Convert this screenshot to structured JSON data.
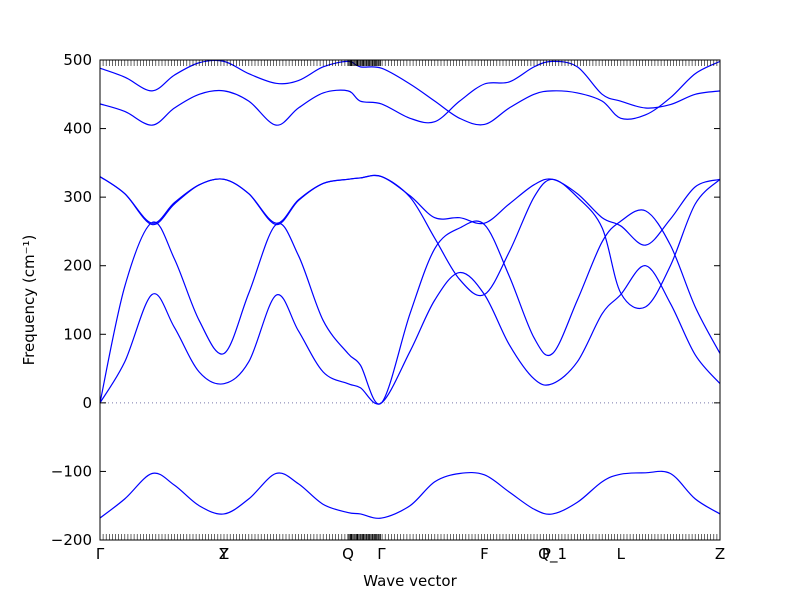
{
  "chart_data": {
    "type": "line",
    "title": "",
    "xlabel": "Wave vector",
    "ylabel": "Frequency (cm⁻¹)",
    "ylim": [
      -200,
      500
    ],
    "yticks": [
      -200,
      -100,
      0,
      100,
      200,
      300,
      400,
      500
    ],
    "x_points": [
      {
        "label": "Γ",
        "pos": 0
      },
      {
        "label": "Y",
        "pos": 1
      },
      {
        "label": "Z",
        "pos": 1
      },
      {
        "label": "Q",
        "pos": 2
      },
      {
        "label": "Γ",
        "pos": 2.27
      },
      {
        "label": "F",
        "pos": 3.1
      },
      {
        "label": "P",
        "pos": 3.6
      },
      {
        "label": "Q_1",
        "pos": 3.65
      },
      {
        "label": "L",
        "pos": 4.2
      },
      {
        "label": "Z",
        "pos": 5
      }
    ],
    "xlim": [
      0,
      5
    ],
    "zero_line": true,
    "line_color": "#0000ff",
    "series": [
      {
        "x": [
          0,
          0.2,
          0.42,
          0.6,
          0.8,
          1.0,
          1.2,
          1.42,
          1.6,
          1.8,
          2.0,
          2.1,
          2.27,
          2.5,
          2.7,
          2.9,
          3.1,
          3.3,
          3.5,
          3.65,
          3.85,
          4.05,
          4.2,
          4.4,
          4.6,
          4.8,
          5.0
        ],
        "values": [
          0,
          60,
          158,
          110,
          45,
          28,
          60,
          157,
          105,
          45,
          28,
          22,
          0,
          75,
          150,
          190,
          158,
          85,
          35,
          28,
          60,
          130,
          158,
          200,
          145,
          70,
          28
        ]
      },
      {
        "x": [
          0,
          0.2,
          0.42,
          0.6,
          0.8,
          1.0,
          1.2,
          1.42,
          1.6,
          1.8,
          2.0,
          2.1,
          2.27,
          2.5,
          2.7,
          2.9,
          3.1,
          3.3,
          3.5,
          3.65,
          3.85,
          4.05,
          4.2,
          4.4,
          4.6,
          4.8,
          5.0
        ],
        "values": [
          0,
          170,
          263,
          210,
          120,
          72,
          160,
          260,
          215,
          120,
          72,
          55,
          0,
          130,
          225,
          255,
          260,
          185,
          95,
          72,
          150,
          235,
          265,
          280,
          230,
          140,
          72
        ]
      },
      {
        "x": [
          0,
          0.2,
          0.42,
          0.6,
          0.8,
          1.0,
          1.2,
          1.42,
          1.6,
          1.8,
          2.0,
          2.1,
          2.27,
          2.5,
          2.7,
          2.9,
          3.1,
          3.3,
          3.5,
          3.65,
          3.85,
          4.05,
          4.2,
          4.4,
          4.6,
          4.8,
          5.0
        ],
        "values": [
          330,
          305,
          260,
          290,
          318,
          326,
          305,
          260,
          295,
          320,
          326,
          328,
          330,
          300,
          240,
          180,
          158,
          220,
          300,
          326,
          300,
          255,
          160,
          140,
          200,
          290,
          326
        ]
      },
      {
        "x": [
          0,
          0.2,
          0.42,
          0.6,
          0.8,
          1.0,
          1.2,
          1.42,
          1.6,
          1.8,
          2.0,
          2.1,
          2.27,
          2.5,
          2.7,
          2.9,
          3.1,
          3.3,
          3.5,
          3.65,
          3.85,
          4.05,
          4.2,
          4.4,
          4.6,
          4.8,
          5.0
        ],
        "values": [
          330,
          305,
          262,
          292,
          318,
          326,
          305,
          262,
          296,
          320,
          326,
          328,
          330,
          302,
          270,
          270,
          262,
          290,
          318,
          326,
          305,
          270,
          258,
          230,
          268,
          315,
          326
        ]
      },
      {
        "x": [
          0,
          0.2,
          0.42,
          0.6,
          0.8,
          1.0,
          1.2,
          1.42,
          1.6,
          1.8,
          2.0,
          2.1,
          2.27,
          2.5,
          2.7,
          2.9,
          3.1,
          3.3,
          3.5,
          3.65,
          3.85,
          4.05,
          4.2,
          4.4,
          4.6,
          4.8,
          5.0
        ],
        "values": [
          436,
          425,
          405,
          430,
          450,
          455,
          440,
          405,
          430,
          452,
          455,
          440,
          436,
          415,
          410,
          440,
          465,
          468,
          490,
          498,
          490,
          450,
          440,
          430,
          435,
          450,
          455
        ]
      },
      {
        "x": [
          0,
          0.2,
          0.42,
          0.6,
          0.8,
          1.0,
          1.2,
          1.42,
          1.6,
          1.8,
          2.0,
          2.1,
          2.27,
          2.5,
          2.7,
          2.9,
          3.1,
          3.3,
          3.5,
          3.65,
          3.85,
          4.05,
          4.2,
          4.4,
          4.6,
          4.8,
          5.0
        ],
        "values": [
          488,
          475,
          455,
          478,
          496,
          498,
          480,
          466,
          470,
          490,
          498,
          490,
          488,
          465,
          440,
          415,
          406,
          430,
          450,
          455,
          452,
          440,
          415,
          420,
          445,
          480,
          498
        ]
      },
      {
        "x": [
          0,
          0.2,
          0.42,
          0.6,
          0.8,
          1.0,
          1.2,
          1.42,
          1.6,
          1.8,
          2.0,
          2.1,
          2.27,
          2.5,
          2.7,
          2.9,
          3.1,
          3.3,
          3.5,
          3.65,
          3.85,
          4.05,
          4.2,
          4.4,
          4.6,
          4.8,
          5.0
        ],
        "values": [
          -168,
          -140,
          -103,
          -120,
          -150,
          -162,
          -140,
          -103,
          -118,
          -148,
          -160,
          -162,
          -168,
          -150,
          -115,
          -103,
          -105,
          -130,
          -155,
          -162,
          -145,
          -115,
          -104,
          -102,
          -103,
          -140,
          -162
        ]
      }
    ]
  }
}
